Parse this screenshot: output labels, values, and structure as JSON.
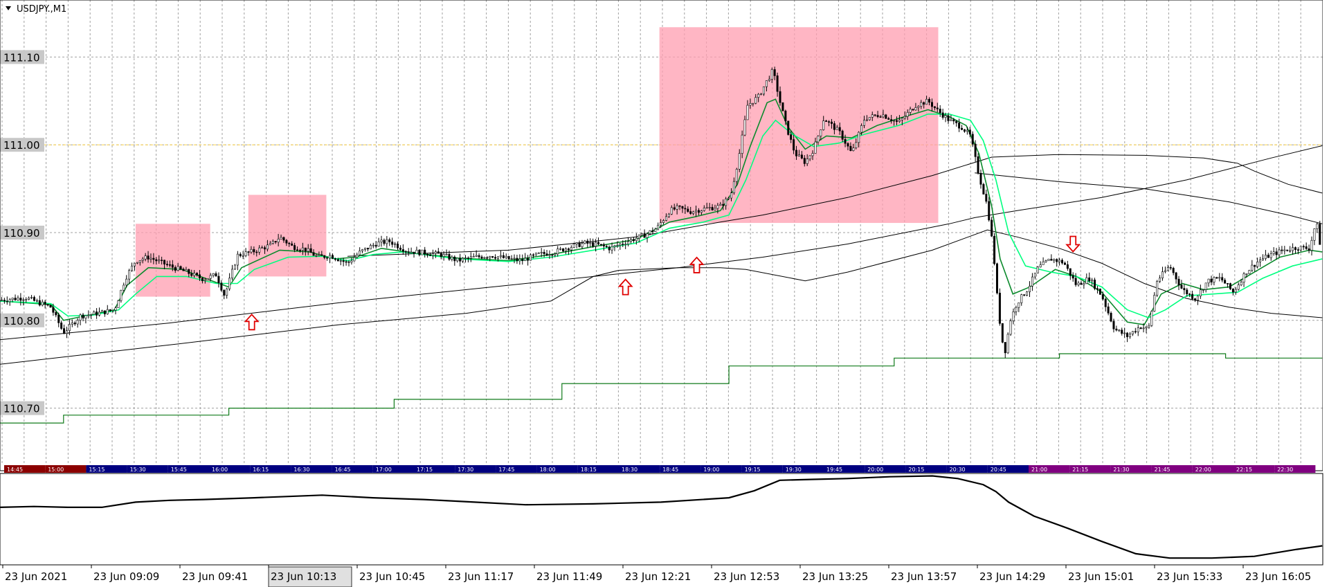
{
  "chart_data": {
    "type": "candlestick",
    "symbol_label": "USDJPY.,M1",
    "ylim": [
      110.635,
      111.165
    ],
    "y_ticks": [
      "110.70",
      "110.80",
      "110.90",
      "111.00",
      "111.10"
    ],
    "current_price_line": 111.0,
    "x_tick_labels": [
      "23 Jun 2021",
      "23 Jun 09:09",
      "23 Jun 09:41",
      "23 Jun 10:13",
      "23 Jun 10:45",
      "23 Jun 11:17",
      "23 Jun 11:49",
      "23 Jun 12:21",
      "23 Jun 12:53",
      "23 Jun 13:25",
      "23 Jun 13:57",
      "23 Jun 14:29",
      "23 Jun 15:01",
      "23 Jun 15:33",
      "23 Jun 16:05"
    ],
    "highlighted_label_index": 3,
    "session_bar_labels": [
      "14:45",
      "15:00",
      "15:15",
      "15:30",
      "15:45",
      "16:00",
      "16:15",
      "16:30",
      "16:45",
      "17:00",
      "17:15",
      "17:30",
      "17:45",
      "18:00",
      "18:15",
      "18:30",
      "18:45",
      "19:00",
      "19:15",
      "19:30",
      "19:45",
      "20:00",
      "20:15",
      "20:30",
      "20:45",
      "21:00",
      "21:15",
      "21:30",
      "21:45",
      "22:00",
      "22:15",
      "22:30"
    ],
    "session_colors": {
      "red": "#8b0000",
      "blue": "#000080",
      "purple": "#800080"
    },
    "price_path": [
      [
        0,
        110.823
      ],
      [
        30,
        110.826
      ],
      [
        60,
        110.815
      ],
      [
        75,
        110.786
      ],
      [
        95,
        110.805
      ],
      [
        115,
        110.808
      ],
      [
        135,
        110.812
      ],
      [
        148,
        110.848
      ],
      [
        160,
        110.868
      ],
      [
        175,
        110.872
      ],
      [
        200,
        110.862
      ],
      [
        220,
        110.855
      ],
      [
        240,
        110.847
      ],
      [
        255,
        110.852
      ],
      [
        265,
        110.828
      ],
      [
        280,
        110.874
      ],
      [
        300,
        110.879
      ],
      [
        320,
        110.886
      ],
      [
        330,
        110.895
      ],
      [
        345,
        110.884
      ],
      [
        360,
        110.881
      ],
      [
        375,
        110.872
      ],
      [
        390,
        110.874
      ],
      [
        410,
        110.865
      ],
      [
        425,
        110.878
      ],
      [
        445,
        110.888
      ],
      [
        460,
        110.89
      ],
      [
        480,
        110.879
      ],
      [
        500,
        110.877
      ],
      [
        520,
        110.875
      ],
      [
        540,
        110.868
      ],
      [
        560,
        110.872
      ],
      [
        580,
        110.874
      ],
      [
        600,
        110.87
      ],
      [
        615,
        110.868
      ],
      [
        635,
        110.875
      ],
      [
        655,
        110.878
      ],
      [
        670,
        110.883
      ],
      [
        690,
        110.888
      ],
      [
        705,
        110.886
      ],
      [
        720,
        110.882
      ],
      [
        740,
        110.89
      ],
      [
        760,
        110.897
      ],
      [
        775,
        110.905
      ],
      [
        790,
        110.925
      ],
      [
        800,
        110.928
      ],
      [
        815,
        110.924
      ],
      [
        830,
        110.927
      ],
      [
        850,
        110.93
      ],
      [
        862,
        110.942
      ],
      [
        872,
        110.988
      ],
      [
        882,
        111.045
      ],
      [
        895,
        111.055
      ],
      [
        905,
        111.073
      ],
      [
        912,
        111.085
      ],
      [
        920,
        111.05
      ],
      [
        928,
        111.02
      ],
      [
        938,
        110.99
      ],
      [
        950,
        110.98
      ],
      [
        960,
        110.995
      ],
      [
        972,
        111.03
      ],
      [
        990,
        111.015
      ],
      [
        1005,
        110.99
      ],
      [
        1020,
        111.03
      ],
      [
        1040,
        111.035
      ],
      [
        1060,
        111.025
      ],
      [
        1080,
        111.045
      ],
      [
        1095,
        111.05
      ],
      [
        1105,
        111.04
      ],
      [
        1120,
        111.028
      ],
      [
        1135,
        111.02
      ],
      [
        1145,
        111.01
      ],
      [
        1155,
        110.965
      ],
      [
        1165,
        110.93
      ],
      [
        1172,
        110.88
      ],
      [
        1178,
        110.81
      ],
      [
        1185,
        110.76
      ],
      [
        1192,
        110.8
      ],
      [
        1200,
        110.82
      ],
      [
        1212,
        110.835
      ],
      [
        1225,
        110.86
      ],
      [
        1240,
        110.87
      ],
      [
        1255,
        110.866
      ],
      [
        1270,
        110.84
      ],
      [
        1285,
        110.848
      ],
      [
        1300,
        110.828
      ],
      [
        1315,
        110.79
      ],
      [
        1330,
        110.782
      ],
      [
        1345,
        110.793
      ],
      [
        1355,
        110.79
      ],
      [
        1365,
        110.845
      ],
      [
        1380,
        110.862
      ],
      [
        1395,
        110.835
      ],
      [
        1410,
        110.825
      ],
      [
        1425,
        110.845
      ],
      [
        1440,
        110.848
      ],
      [
        1455,
        110.832
      ],
      [
        1470,
        110.855
      ],
      [
        1485,
        110.868
      ],
      [
        1500,
        110.875
      ],
      [
        1515,
        110.88
      ],
      [
        1530,
        110.883
      ],
      [
        1545,
        110.882
      ],
      [
        1553,
        110.913
      ],
      [
        1560,
        110.872
      ]
    ],
    "green_signal_line": [
      [
        0,
        110.822
      ],
      [
        60,
        110.818
      ],
      [
        75,
        110.8
      ],
      [
        100,
        110.805
      ],
      [
        135,
        110.812
      ],
      [
        150,
        110.84
      ],
      [
        175,
        110.86
      ],
      [
        215,
        110.858
      ],
      [
        250,
        110.845
      ],
      [
        270,
        110.838
      ],
      [
        285,
        110.86
      ],
      [
        330,
        110.88
      ],
      [
        365,
        110.878
      ],
      [
        395,
        110.87
      ],
      [
        420,
        110.872
      ],
      [
        450,
        110.882
      ],
      [
        480,
        110.878
      ],
      [
        540,
        110.871
      ],
      [
        600,
        110.868
      ],
      [
        650,
        110.875
      ],
      [
        700,
        110.884
      ],
      [
        750,
        110.892
      ],
      [
        790,
        110.912
      ],
      [
        820,
        110.918
      ],
      [
        850,
        110.925
      ],
      [
        870,
        110.955
      ],
      [
        885,
        110.998
      ],
      [
        905,
        111.048
      ],
      [
        915,
        111.052
      ],
      [
        930,
        111.02
      ],
      [
        950,
        110.995
      ],
      [
        975,
        111.01
      ],
      [
        1005,
        111.008
      ],
      [
        1035,
        111.022
      ],
      [
        1060,
        111.03
      ],
      [
        1095,
        111.04
      ],
      [
        1120,
        111.032
      ],
      [
        1140,
        111.022
      ],
      [
        1155,
        110.99
      ],
      [
        1170,
        110.93
      ],
      [
        1180,
        110.87
      ],
      [
        1195,
        110.83
      ],
      [
        1215,
        110.838
      ],
      [
        1245,
        110.858
      ],
      [
        1270,
        110.85
      ],
      [
        1300,
        110.832
      ],
      [
        1330,
        110.798
      ],
      [
        1350,
        110.795
      ],
      [
        1370,
        110.83
      ],
      [
        1395,
        110.842
      ],
      [
        1420,
        110.835
      ],
      [
        1450,
        110.838
      ],
      [
        1480,
        110.855
      ],
      [
        1510,
        110.872
      ],
      [
        1545,
        110.88
      ],
      [
        1560,
        110.878
      ]
    ],
    "lime_signal_line": [
      [
        0,
        110.822
      ],
      [
        60,
        110.819
      ],
      [
        80,
        110.805
      ],
      [
        110,
        110.806
      ],
      [
        140,
        110.812
      ],
      [
        160,
        110.83
      ],
      [
        185,
        110.85
      ],
      [
        220,
        110.85
      ],
      [
        255,
        110.842
      ],
      [
        280,
        110.842
      ],
      [
        300,
        110.858
      ],
      [
        340,
        110.872
      ],
      [
        380,
        110.873
      ],
      [
        410,
        110.868
      ],
      [
        440,
        110.875
      ],
      [
        475,
        110.878
      ],
      [
        540,
        110.87
      ],
      [
        600,
        110.867
      ],
      [
        650,
        110.872
      ],
      [
        700,
        110.88
      ],
      [
        750,
        110.888
      ],
      [
        790,
        110.905
      ],
      [
        830,
        110.912
      ],
      [
        860,
        110.92
      ],
      [
        880,
        110.96
      ],
      [
        900,
        111.01
      ],
      [
        915,
        111.028
      ],
      [
        935,
        111.012
      ],
      [
        960,
        110.998
      ],
      [
        990,
        111.002
      ],
      [
        1020,
        111.012
      ],
      [
        1060,
        111.022
      ],
      [
        1095,
        111.035
      ],
      [
        1120,
        111.035
      ],
      [
        1145,
        111.028
      ],
      [
        1160,
        111.005
      ],
      [
        1175,
        110.96
      ],
      [
        1190,
        110.9
      ],
      [
        1210,
        110.862
      ],
      [
        1240,
        110.855
      ],
      [
        1270,
        110.85
      ],
      [
        1300,
        110.838
      ],
      [
        1330,
        110.812
      ],
      [
        1355,
        110.803
      ],
      [
        1375,
        110.812
      ],
      [
        1400,
        110.828
      ],
      [
        1430,
        110.83
      ],
      [
        1460,
        110.832
      ],
      [
        1490,
        110.848
      ],
      [
        1525,
        110.862
      ],
      [
        1560,
        110.87
      ]
    ],
    "black_ma_lines": [
      [
        [
          0,
          110.778
        ],
        [
          200,
          110.797
        ],
        [
          400,
          110.82
        ],
        [
          600,
          110.84
        ],
        [
          800,
          110.86
        ],
        [
          900,
          110.872
        ],
        [
          1000,
          110.887
        ],
        [
          1120,
          110.91
        ],
        [
          1150,
          110.917
        ],
        [
          1200,
          110.925
        ],
        [
          1300,
          110.94
        ],
        [
          1400,
          110.96
        ],
        [
          1500,
          110.985
        ],
        [
          1560,
          110.999
        ]
      ],
      [
        [
          0,
          110.75
        ],
        [
          200,
          110.772
        ],
        [
          400,
          110.795
        ],
        [
          550,
          110.808
        ],
        [
          650,
          110.822
        ],
        [
          700,
          110.85
        ],
        [
          730,
          110.857
        ],
        [
          800,
          110.86
        ],
        [
          850,
          110.86
        ],
        [
          880,
          110.858
        ],
        [
          950,
          110.845
        ],
        [
          1000,
          110.855
        ],
        [
          1100,
          110.88
        ],
        [
          1165,
          110.903
        ],
        [
          1200,
          110.895
        ],
        [
          1250,
          110.882
        ],
        [
          1300,
          110.865
        ],
        [
          1350,
          110.842
        ],
        [
          1400,
          110.825
        ],
        [
          1450,
          110.815
        ],
        [
          1500,
          110.808
        ],
        [
          1560,
          110.803
        ]
      ],
      [
        [
          410,
          110.873
        ],
        [
          600,
          110.88
        ],
        [
          750,
          110.895
        ],
        [
          850,
          110.912
        ],
        [
          900,
          110.92
        ],
        [
          1000,
          110.94
        ],
        [
          1100,
          110.965
        ],
        [
          1150,
          110.98
        ],
        [
          1170,
          110.986
        ],
        [
          1250,
          110.989
        ],
        [
          1350,
          110.988
        ],
        [
          1420,
          110.985
        ],
        [
          1460,
          110.979
        ],
        [
          1480,
          110.97
        ],
        [
          1520,
          110.955
        ],
        [
          1560,
          110.945
        ]
      ],
      [
        [
          1150,
          110.968
        ],
        [
          1250,
          110.958
        ],
        [
          1350,
          110.95
        ],
        [
          1450,
          110.935
        ],
        [
          1520,
          110.92
        ],
        [
          1560,
          110.91
        ]
      ]
    ],
    "dark_green_step_line": [
      [
        0,
        110.683
      ],
      [
        75,
        110.683
      ],
      [
        75,
        110.692
      ],
      [
        270,
        110.692
      ],
      [
        270,
        110.7
      ],
      [
        465,
        110.7
      ],
      [
        465,
        110.71
      ],
      [
        663,
        110.71
      ],
      [
        663,
        110.728
      ],
      [
        860,
        110.728
      ],
      [
        860,
        110.748
      ],
      [
        1055,
        110.748
      ],
      [
        1055,
        110.757
      ],
      [
        1250,
        110.757
      ],
      [
        1250,
        110.762
      ],
      [
        1446,
        110.762
      ],
      [
        1446,
        110.757
      ],
      [
        1560,
        110.757
      ]
    ],
    "highlight_boxes": [
      {
        "x0": 160,
        "x1": 248,
        "y0": 110.827,
        "y1": 110.91
      },
      {
        "x0": 293,
        "x1": 385,
        "y0": 110.85,
        "y1": 110.943
      },
      {
        "x0": 778,
        "x1": 1107,
        "y0": 110.911,
        "y1": 111.134
      }
    ],
    "arrows": [
      {
        "x": 297,
        "y": 110.798,
        "dir": "up"
      },
      {
        "x": 738,
        "y": 110.838,
        "dir": "up"
      },
      {
        "x": 822,
        "y": 110.863,
        "dir": "up"
      },
      {
        "x": 1266,
        "y": 110.887,
        "dir": "down"
      }
    ],
    "oscillator_path": [
      [
        0,
        604
      ],
      [
        40,
        603
      ],
      [
        80,
        604
      ],
      [
        120,
        604
      ],
      [
        160,
        598
      ],
      [
        200,
        596
      ],
      [
        240,
        595
      ],
      [
        300,
        593
      ],
      [
        380,
        590
      ],
      [
        440,
        593
      ],
      [
        500,
        595
      ],
      [
        560,
        598
      ],
      [
        620,
        601
      ],
      [
        700,
        600
      ],
      [
        780,
        598
      ],
      [
        860,
        593
      ],
      [
        890,
        585
      ],
      [
        920,
        573
      ],
      [
        960,
        572
      ],
      [
        1000,
        571
      ],
      [
        1050,
        569
      ],
      [
        1100,
        568
      ],
      [
        1130,
        571
      ],
      [
        1160,
        578
      ],
      [
        1175,
        586
      ],
      [
        1190,
        598
      ],
      [
        1220,
        614
      ],
      [
        1260,
        628
      ],
      [
        1300,
        643
      ],
      [
        1340,
        657
      ],
      [
        1380,
        662
      ],
      [
        1430,
        662
      ],
      [
        1480,
        660
      ],
      [
        1530,
        652
      ],
      [
        1560,
        648
      ]
    ],
    "oscillator_ylim": [
      570,
      665
    ]
  },
  "colors": {
    "grid": "#a0a0a0",
    "current_price": "#ffd54a",
    "up_arrow": "#e00000",
    "box": "#ff9eb0",
    "green": "#0b8a2c",
    "lime": "#00ff7f",
    "darkgreen": "#0f7a19",
    "ma": "#000000"
  }
}
